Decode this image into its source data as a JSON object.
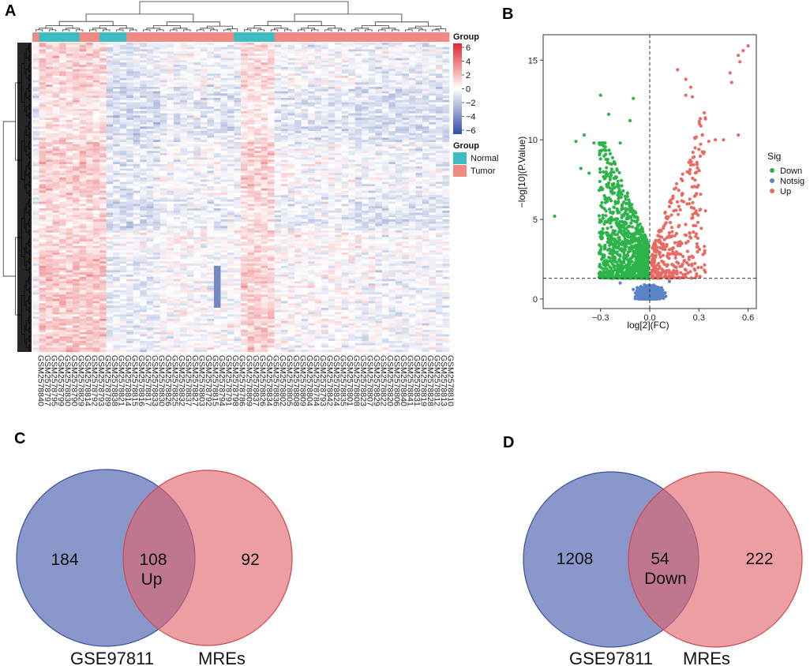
{
  "panels": {
    "a": "A",
    "b": "B",
    "c": "C",
    "d": "D"
  },
  "colors": {
    "normal": "#3DBDBF",
    "tumor": "#F08A82",
    "heat_low": "#2E4DA7",
    "heat_mid": "#FFFFFF",
    "heat_high": "#E0262A",
    "down": "#2DB34A",
    "notsig": "#5B84C8",
    "up": "#E96A62",
    "venn_left": "#5C6FB5",
    "venn_right": "#E0636A"
  },
  "chart_data": [
    {
      "type": "heatmap",
      "panel": "A",
      "group_annotation_title": "Group",
      "group_legend_title": "Group",
      "groups": [
        "Normal",
        "Tumor"
      ],
      "color_scale": {
        "title": "Group",
        "ticks": [
          "6",
          "4",
          "2",
          "0",
          "−2",
          "−4",
          "−6"
        ],
        "range": [
          -6,
          6
        ]
      },
      "sample_group_sequence": [
        {
          "group": "Tumor",
          "count": 1
        },
        {
          "group": "Normal",
          "count": 6
        },
        {
          "group": "Tumor",
          "count": 3
        },
        {
          "group": "Normal",
          "count": 4
        },
        {
          "group": "Tumor",
          "count": 16
        },
        {
          "group": "Normal",
          "count": 6
        },
        {
          "group": "Tumor",
          "count": 26
        }
      ],
      "samples": [
        "GSM2578840",
        "GSM2578797",
        "GSM2578795",
        "GSM2578799",
        "GSM2578830",
        "GSM2578790",
        "GSM2578829",
        "GSM2578814",
        "GSM2578792",
        "GSM2578793",
        "GSM2578789",
        "GSM2578838",
        "GSM2578821",
        "GSM2578814",
        "GSM2578815",
        "GSM2578816",
        "GSM2578817",
        "GSM2578833",
        "GSM2578830",
        "GSM2578826",
        "GSM2578825",
        "GSM2578832",
        "GSM2578837",
        "GSM2578827",
        "GSM2578803",
        "GSM2578792",
        "GSM2578815",
        "GSM2578794",
        "GSM2578791",
        "GSM2578798",
        "GSM2578786",
        "GSM2578809",
        "GSM2578837",
        "GSM2578826",
        "GSM2578834",
        "GSM2578836",
        "GSM2578802",
        "GSM2578805",
        "GSM2578808",
        "GSM2578809",
        "GSM2578804",
        "GSM2578784",
        "GSM2578793",
        "GSM2578842",
        "GSM2578824",
        "GSM2578835",
        "GSM2578801",
        "GSM2578808",
        "GSM2578823",
        "GSM2578807",
        "GSM2578829",
        "GSM2578822",
        "GSM2578820",
        "GSM2578806",
        "GSM2578840",
        "GSM2578841",
        "GSM2578831",
        "GSM2578819",
        "GSM2578828",
        "GSM2578812",
        "GSM2578813",
        "GSM2578810"
      ]
    },
    {
      "type": "scatter",
      "panel": "B",
      "xlabel": "log[2](FC)",
      "ylabel": "−log[10](P.Value)",
      "xlim": [
        -0.65,
        0.65
      ],
      "ylim": [
        -0.6,
        16.6
      ],
      "xticks": [
        -0.3,
        0.0,
        0.3,
        0.6
      ],
      "xtick_labels": [
        "−0.3",
        "0.0",
        "0.3",
        "0.6"
      ],
      "yticks": [
        0,
        5,
        10,
        15
      ],
      "ytick_labels": [
        "0",
        "5",
        "10",
        "15"
      ],
      "vline": 0.0,
      "hline": 1.3,
      "legend": {
        "title": "Sig",
        "entries": [
          "Down",
          "Notsig",
          "Up"
        ]
      },
      "series": [
        {
          "name": "Up",
          "highlighted_points": [
            [
              0.6,
              15.9
            ],
            [
              0.57,
              15.6
            ],
            [
              0.54,
              15.3
            ],
            [
              0.55,
              14.9
            ],
            [
              0.49,
              14.2
            ],
            [
              0.5,
              13.6
            ],
            [
              0.17,
              14.4
            ],
            [
              0.22,
              13.8
            ],
            [
              0.25,
              13.3
            ],
            [
              0.22,
              12.8
            ],
            [
              0.26,
              12.7
            ],
            [
              0.54,
              10.3
            ],
            [
              0.45,
              10.0
            ],
            [
              0.32,
              10.3
            ],
            [
              0.4,
              10.0
            ],
            [
              0.36,
              9.9
            ]
          ]
        },
        {
          "name": "Down",
          "highlighted_points": [
            [
              -0.3,
              12.8
            ],
            [
              -0.25,
              11.6
            ],
            [
              -0.12,
              11.2
            ],
            [
              -0.1,
              12.6
            ],
            [
              -0.4,
              10.3
            ],
            [
              -0.45,
              9.9
            ],
            [
              -0.34,
              9.8
            ],
            [
              -0.28,
              9.6
            ],
            [
              -0.18,
              9.8
            ],
            [
              -0.58,
              5.2
            ],
            [
              -0.42,
              8.2
            ],
            [
              -0.37,
              7.9
            ],
            [
              -0.3,
              8.8
            ]
          ]
        },
        {
          "name": "Notsig",
          "highlighted_points": [
            [
              -0.18,
              1.0
            ],
            [
              0.12,
              1.1
            ],
            [
              -0.05,
              0.4
            ],
            [
              0.05,
              0.6
            ],
            [
              0.0,
              0.2
            ],
            [
              -0.1,
              0.6
            ]
          ]
        }
      ]
    },
    {
      "type": "venn",
      "panel": "C",
      "sets": [
        "GSE97811",
        "MREs"
      ],
      "left_only": "184",
      "intersection": "108",
      "intersection_label": "Up",
      "right_only": "92"
    },
    {
      "type": "venn",
      "panel": "D",
      "sets": [
        "GSE97811",
        "MREs"
      ],
      "left_only": "1208",
      "intersection": "54",
      "intersection_label": "Down",
      "right_only": "222"
    }
  ]
}
